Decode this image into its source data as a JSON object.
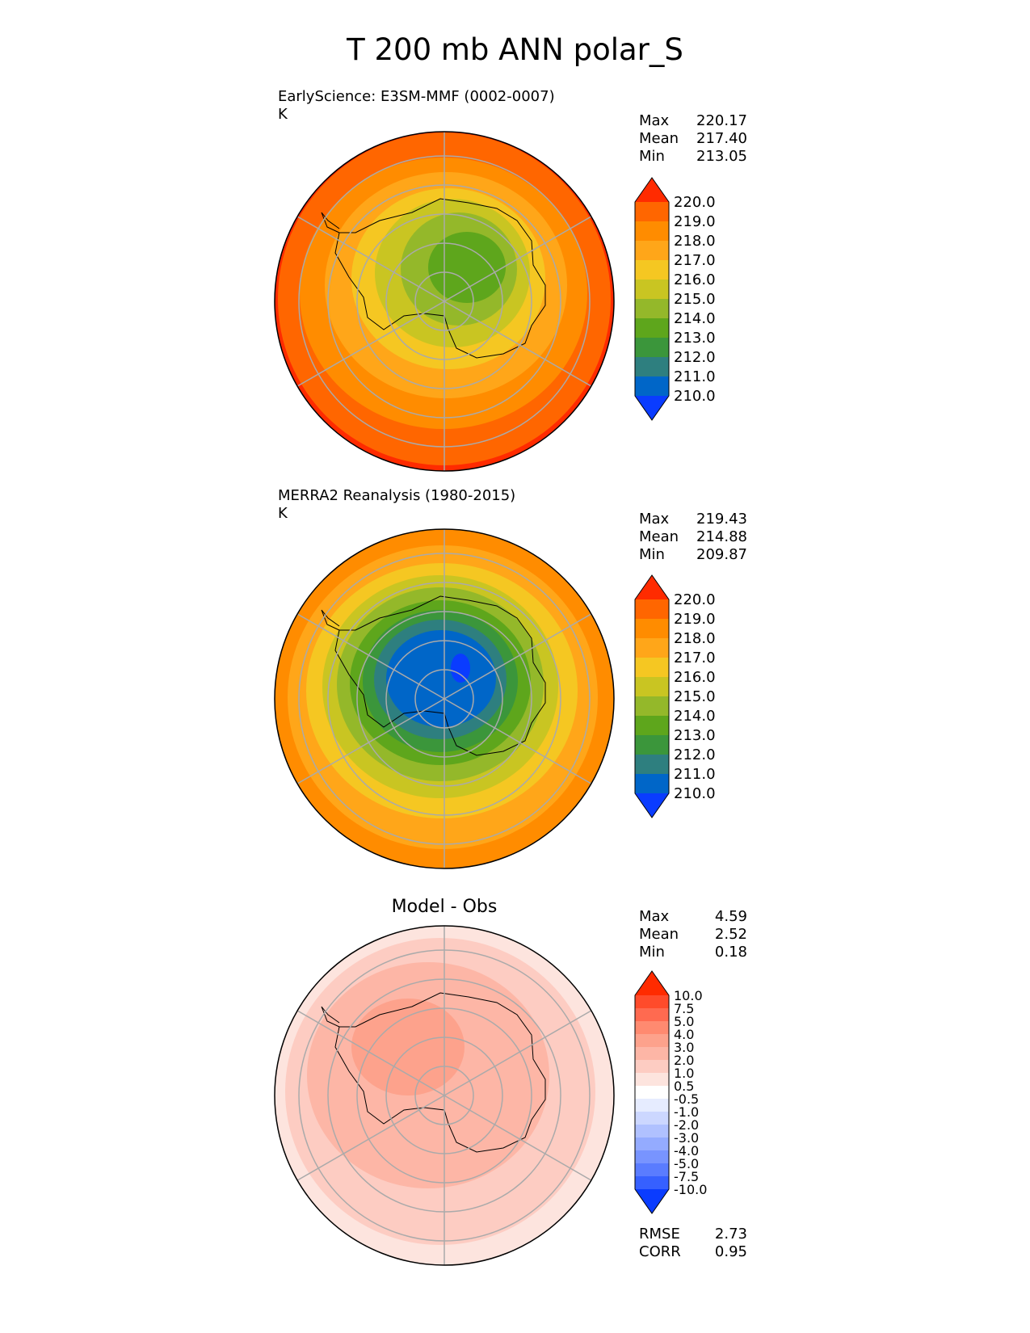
{
  "figure": {
    "title": "T 200 mb ANN polar_S"
  },
  "panels": [
    {
      "id": "test",
      "subtitle": "EarlyScience: E3SM-MMF (0002-0007)",
      "units": "K",
      "stats": [
        {
          "label": "Max",
          "value": "220.17"
        },
        {
          "label": "Mean",
          "value": "217.40"
        },
        {
          "label": "Min",
          "value": "213.05"
        }
      ]
    },
    {
      "id": "ref",
      "subtitle": "MERRA2 Reanalysis (1980-2015)",
      "units": "K",
      "stats": [
        {
          "label": "Max",
          "value": "219.43"
        },
        {
          "label": "Mean",
          "value": "214.88"
        },
        {
          "label": "Min",
          "value": "209.87"
        }
      ]
    },
    {
      "id": "diff",
      "title": "Model - Obs",
      "stats": [
        {
          "label": "Max",
          "value": "4.59"
        },
        {
          "label": "Mean",
          "value": "2.52"
        },
        {
          "label": "Min",
          "value": "0.18"
        }
      ],
      "metrics": [
        {
          "label": "RMSE",
          "value": "2.73"
        },
        {
          "label": "CORR",
          "value": "0.95"
        }
      ]
    }
  ],
  "chart_data": [
    {
      "type": "heatmap",
      "projection": "south-polar-stereographic",
      "title": "EarlyScience: E3SM-MMF (0002-0007)",
      "units": "K",
      "colorbar_ticks": [
        "220.0",
        "219.0",
        "218.0",
        "217.0",
        "216.0",
        "215.0",
        "214.0",
        "213.0",
        "212.0",
        "211.0",
        "210.0"
      ],
      "colorbar_colors": [
        "#ff2b00",
        "#ff6600",
        "#ff8c00",
        "#ffa619",
        "#f5c722",
        "#c9c522",
        "#94b82a",
        "#5ea61c",
        "#3b963b",
        "#2e7f7f",
        "#0066c8",
        "#0a3cff"
      ],
      "levels": [
        {
          "value": 220.5,
          "color": "#ff2b00"
        },
        {
          "value": 219.5,
          "color": "#ff6600"
        },
        {
          "value": 218.5,
          "color": "#ff8c00"
        },
        {
          "value": 217.5,
          "color": "#ffa619"
        },
        {
          "value": 216.5,
          "color": "#f5c722"
        },
        {
          "value": 215.5,
          "color": "#c9c522"
        },
        {
          "value": 214.5,
          "color": "#94b82a"
        },
        {
          "value": 213.5,
          "color": "#5ea61c"
        }
      ]
    },
    {
      "type": "heatmap",
      "projection": "south-polar-stereographic",
      "title": "MERRA2 Reanalysis (1980-2015)",
      "units": "K",
      "colorbar_ticks": [
        "220.0",
        "219.0",
        "218.0",
        "217.0",
        "216.0",
        "215.0",
        "214.0",
        "213.0",
        "212.0",
        "211.0",
        "210.0"
      ],
      "colorbar_colors": [
        "#ff2b00",
        "#ff6600",
        "#ff8c00",
        "#ffa619",
        "#f5c722",
        "#c9c522",
        "#94b82a",
        "#5ea61c",
        "#3b963b",
        "#2e7f7f",
        "#0066c8",
        "#0a3cff"
      ],
      "levels": [
        {
          "value": 218.5,
          "color": "#ff8c00"
        },
        {
          "value": 217.5,
          "color": "#ffa619"
        },
        {
          "value": 216.5,
          "color": "#f5c722"
        },
        {
          "value": 215.5,
          "color": "#c9c522"
        },
        {
          "value": 214.5,
          "color": "#94b82a"
        },
        {
          "value": 213.5,
          "color": "#5ea61c"
        },
        {
          "value": 212.5,
          "color": "#3b963b"
        },
        {
          "value": 211.5,
          "color": "#2e7f7f"
        },
        {
          "value": 210.5,
          "color": "#0066c8"
        },
        {
          "value": 209.9,
          "color": "#0a3cff"
        }
      ]
    },
    {
      "type": "heatmap",
      "projection": "south-polar-stereographic",
      "title": "Model - Obs",
      "units": "K",
      "colorbar_ticks": [
        "10.0",
        "7.5",
        "5.0",
        "4.0",
        "3.0",
        "2.0",
        "1.0",
        "0.5",
        "-0.5",
        "-1.0",
        "-2.0",
        "-3.0",
        "-4.0",
        "-5.0",
        "-7.5",
        "-10.0"
      ],
      "colorbar_colors": [
        "#ff2b00",
        "#ff4b2b",
        "#ff6a50",
        "#ff8a70",
        "#fda28c",
        "#fdb6a6",
        "#fdccc2",
        "#fde4de",
        "#ffffff",
        "#e6ecff",
        "#ccd7ff",
        "#b0c1ff",
        "#94abff",
        "#7894ff",
        "#5a7cff",
        "#3660ff",
        "#0a3cff"
      ],
      "levels": [
        {
          "value": 1.0,
          "color": "#fde4de"
        },
        {
          "value": 2.0,
          "color": "#fdccc2"
        },
        {
          "value": 3.0,
          "color": "#fdb6a6"
        },
        {
          "value": 4.0,
          "color": "#fda28c"
        }
      ]
    }
  ]
}
